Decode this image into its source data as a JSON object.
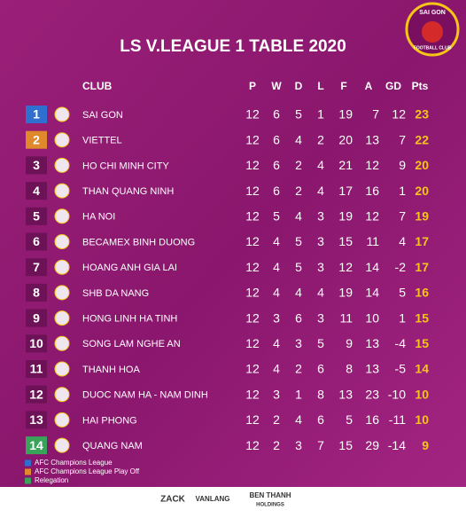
{
  "header": {
    "title": "LS V.LEAGUE 1 TABLE 2020",
    "logo_top": "SAI GON",
    "logo_bottom": "FOOTBALL CLUB"
  },
  "table": {
    "columns": [
      "CLUB",
      "P",
      "W",
      "D",
      "L",
      "F",
      "A",
      "GD",
      "Pts"
    ],
    "rows": [
      {
        "rank": 1,
        "club": "SAI GON",
        "stats": [
          12,
          6,
          5,
          1,
          19,
          7,
          12,
          23
        ],
        "color": "#2f6fd0"
      },
      {
        "rank": 2,
        "club": "VIETTEL",
        "stats": [
          12,
          6,
          4,
          2,
          20,
          13,
          7,
          22
        ],
        "color": "#e0892c"
      },
      {
        "rank": 3,
        "club": "HO CHI MINH CITY",
        "stats": [
          12,
          6,
          2,
          4,
          21,
          12,
          9,
          20
        ],
        "color": "#6e1257"
      },
      {
        "rank": 4,
        "club": "THAN QUANG NINH",
        "stats": [
          12,
          6,
          2,
          4,
          17,
          16,
          1,
          20
        ],
        "color": "#6e1257"
      },
      {
        "rank": 5,
        "club": "HA NOI",
        "stats": [
          12,
          5,
          4,
          3,
          19,
          12,
          7,
          19
        ],
        "color": "#6e1257"
      },
      {
        "rank": 6,
        "club": "BECAMEX BINH DUONG",
        "stats": [
          12,
          4,
          5,
          3,
          15,
          11,
          4,
          17
        ],
        "color": "#6e1257"
      },
      {
        "rank": 7,
        "club": "HOANG ANH GIA LAI",
        "stats": [
          12,
          4,
          5,
          3,
          12,
          14,
          -2,
          17
        ],
        "color": "#6e1257"
      },
      {
        "rank": 8,
        "club": "SHB DA NANG",
        "stats": [
          12,
          4,
          4,
          4,
          19,
          14,
          5,
          16
        ],
        "color": "#6e1257"
      },
      {
        "rank": 9,
        "club": "HONG LINH HA TINH",
        "stats": [
          12,
          3,
          6,
          3,
          11,
          10,
          1,
          15
        ],
        "color": "#6e1257"
      },
      {
        "rank": 10,
        "club": "SONG LAM NGHE AN",
        "stats": [
          12,
          4,
          3,
          5,
          9,
          13,
          -4,
          15
        ],
        "color": "#6e1257"
      },
      {
        "rank": 11,
        "club": "THANH HOA",
        "stats": [
          12,
          4,
          2,
          6,
          8,
          13,
          -5,
          14
        ],
        "color": "#6e1257"
      },
      {
        "rank": 12,
        "club": "DUOC NAM HA - NAM DINH",
        "stats": [
          12,
          3,
          1,
          8,
          13,
          23,
          -10,
          10
        ],
        "color": "#6e1257"
      },
      {
        "rank": 13,
        "club": "HAI PHONG",
        "stats": [
          12,
          2,
          4,
          6,
          5,
          16,
          -11,
          10
        ],
        "color": "#6e1257"
      },
      {
        "rank": 14,
        "club": "QUANG NAM",
        "stats": [
          12,
          2,
          3,
          7,
          15,
          29,
          -14,
          9
        ],
        "color": "#3aa35a"
      }
    ]
  },
  "legend": [
    {
      "label": "AFC Champions League",
      "color": "#2f6fd0"
    },
    {
      "label": "AFC Champions League Play  Off",
      "color": "#e0892c"
    },
    {
      "label": "Relegation",
      "color": "#3aa35a"
    }
  ],
  "sponsors": [
    "ZACK",
    "VANLANG",
    "BEN THANH",
    "HOLDINGS"
  ]
}
